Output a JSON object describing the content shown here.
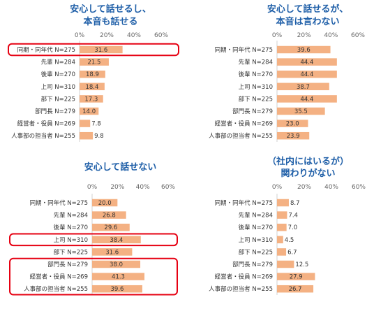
{
  "colors": {
    "bar": "#f4b183",
    "title": "#1f5fa8",
    "highlight": "#e60012",
    "axis": "#d0d0d0",
    "text": "#333333"
  },
  "chart_data": [
    {
      "type": "bar",
      "orientation": "horizontal",
      "title": [
        "安心して話せるし、",
        "本音も話せる"
      ],
      "xlim": [
        0,
        60
      ],
      "xticks": [
        "0%",
        "20%",
        "40%",
        "60%"
      ],
      "categories": [
        "同期・同年代 N=275",
        "先輩 N=284",
        "後輩 N=270",
        "上司 N=310",
        "部下 N=225",
        "部門長 N=279",
        "経営者・役員 N=269",
        "人事部の担当者 N=255"
      ],
      "values": [
        31.6,
        21.5,
        18.9,
        18.4,
        17.3,
        14.0,
        7.8,
        9.8
      ],
      "value_labels": [
        "31.6",
        "21.5",
        "18.9",
        "18.4",
        "17.3",
        "14.0",
        "7.8",
        "9.8"
      ],
      "highlight_groups": [
        [
          0,
          0
        ]
      ]
    },
    {
      "type": "bar",
      "orientation": "horizontal",
      "title": [
        "安心して話せるが、",
        "本音は言わない"
      ],
      "xlim": [
        0,
        60
      ],
      "xticks": [
        "0%",
        "20%",
        "40%",
        "60%"
      ],
      "categories": [
        "同期・同年代 N=275",
        "先輩 N=284",
        "後輩 N=270",
        "上司 N=310",
        "部下 N=225",
        "部門長 N=279",
        "経営者・役員 N=269",
        "人事部の担当者 N=255"
      ],
      "values": [
        39.6,
        44.4,
        44.4,
        38.7,
        44.4,
        35.5,
        23.0,
        23.9
      ],
      "value_labels": [
        "39.6",
        "44.4",
        "44.4",
        "38.7",
        "44.4",
        "35.5",
        "23.0",
        "23.9"
      ],
      "highlight_groups": []
    },
    {
      "type": "bar",
      "orientation": "horizontal",
      "title": [
        "安心して話せない"
      ],
      "xlim": [
        0,
        60
      ],
      "xticks": [
        "0%",
        "20%",
        "40%",
        "60%"
      ],
      "categories": [
        "同期・同年代 N=275",
        "先輩 N=284",
        "後輩 N=270",
        "上司 N=310",
        "部下 N=225",
        "部門長 N=279",
        "経営者・役員 N=269",
        "人事部の担当者 N=255"
      ],
      "values": [
        20.0,
        26.8,
        29.6,
        38.4,
        31.6,
        38.0,
        41.3,
        39.6
      ],
      "value_labels": [
        "20.0",
        "26.8",
        "29.6",
        "38.4",
        "31.6",
        "38.0",
        "41.3",
        "39.6"
      ],
      "highlight_groups": [
        [
          3,
          3
        ],
        [
          5,
          7
        ]
      ]
    },
    {
      "type": "bar",
      "orientation": "horizontal",
      "title": [
        "（社内にはいるが）",
        "関わりがない"
      ],
      "xlim": [
        0,
        60
      ],
      "xticks": [
        "0%",
        "20%",
        "40%",
        "60%"
      ],
      "categories": [
        "同期・同年代 N=275",
        "先輩 N=284",
        "後輩 N=270",
        "上司 N=310",
        "部下 N=225",
        "部門長 N=279",
        "経営者・役員 N=269",
        "人事部の担当者 N=255"
      ],
      "values": [
        8.7,
        7.4,
        7.0,
        4.5,
        6.7,
        12.5,
        27.9,
        26.7
      ],
      "value_labels": [
        "8.7",
        "7.4",
        "7.0",
        "4.5",
        "6.7",
        "12.5",
        "27.9",
        "26.7"
      ],
      "highlight_groups": []
    }
  ]
}
